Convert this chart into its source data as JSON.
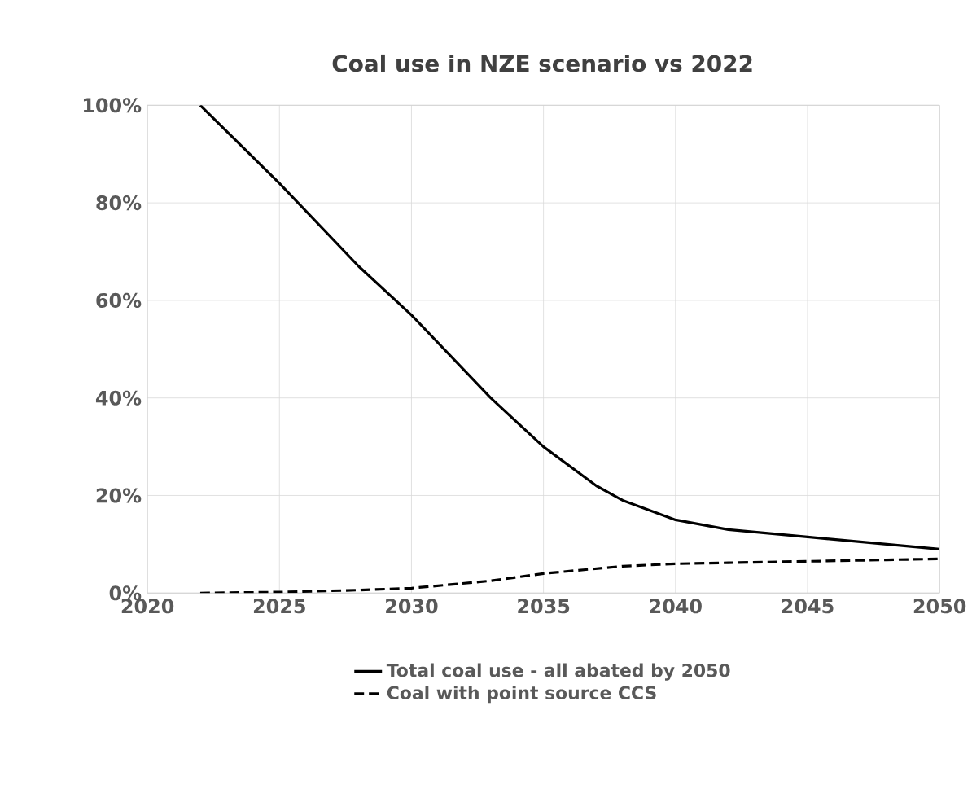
{
  "chart_data": {
    "type": "line",
    "title": "Coal use in NZE scenario vs 2022",
    "x": [
      2022,
      2025,
      2028,
      2030,
      2033,
      2035,
      2037,
      2038,
      2040,
      2042,
      2045,
      2048,
      2050
    ],
    "series": [
      {
        "name": "Total coal use - all abated by 2050",
        "color": "#000000",
        "line_style": "solid",
        "values": [
          100,
          84,
          67,
          57,
          40,
          30,
          22,
          19,
          15,
          13,
          11.5,
          10,
          9
        ]
      },
      {
        "name": "Coal with point source CCS",
        "color": "#000000",
        "line_style": "dashed",
        "values": [
          0,
          0.2,
          0.6,
          1,
          2.5,
          4,
          5,
          5.5,
          6,
          6.2,
          6.5,
          6.8,
          7
        ]
      }
    ],
    "xlim": [
      2020,
      2050
    ],
    "xticks": [
      2020,
      2025,
      2030,
      2035,
      2040,
      2045,
      2050
    ],
    "ylim": [
      0,
      100
    ],
    "yticks": [
      {
        "value": 0,
        "label": "0%"
      },
      {
        "value": 20,
        "label": "20%"
      },
      {
        "value": 40,
        "label": "40%"
      },
      {
        "value": 60,
        "label": "60%"
      },
      {
        "value": 80,
        "label": "80%"
      },
      {
        "value": 100,
        "label": "100%"
      }
    ],
    "grid": true,
    "legend": "bottom",
    "marker": "none"
  }
}
